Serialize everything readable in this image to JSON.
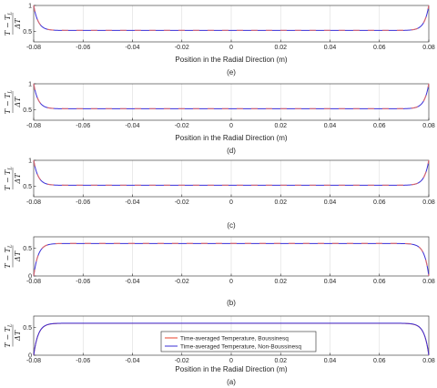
{
  "chart_data": [
    {
      "type": "line",
      "caption": "(e)",
      "xlabel": "Position in the Radial Direction (m)",
      "ylabel": "(T − TL) / ΔT",
      "xlim": [
        -0.08,
        0.08
      ],
      "ylim": [
        0.3,
        1.0
      ],
      "xticks": [
        "-0.08",
        "-0.06",
        "-0.04",
        "-0.02",
        "0",
        "0.02",
        "0.04",
        "0.06",
        "0.08"
      ],
      "yticks": [
        {
          "v": 0.5,
          "label": "0.5"
        },
        {
          "v": 1,
          "label": "1"
        }
      ],
      "grid": "vertical",
      "profile": {
        "edge": 1.0,
        "plateau": 0.52
      },
      "series": [
        {
          "style": "solid",
          "color": "#3a2fd6"
        },
        {
          "style": "dashed",
          "color": "#f07060"
        }
      ]
    },
    {
      "type": "line",
      "caption": "(d)",
      "xlabel": "Position in the Radial Direction (m)",
      "ylabel": "(T − TL) / ΔT",
      "xlim": [
        -0.08,
        0.08
      ],
      "ylim": [
        0.3,
        1.0
      ],
      "xticks": [
        "-0.08",
        "-0.06",
        "-0.04",
        "-0.02",
        "0",
        "0.02",
        "0.04",
        "0.06",
        "0.08"
      ],
      "yticks": [
        {
          "v": 0.5,
          "label": "0.5"
        },
        {
          "v": 1,
          "label": "1"
        }
      ],
      "grid": "vertical",
      "profile": {
        "edge": 1.0,
        "plateau": 0.52
      },
      "series": [
        {
          "style": "solid",
          "color": "#3a2fd6"
        },
        {
          "style": "dashed",
          "color": "#f07060"
        }
      ]
    },
    {
      "type": "line",
      "caption": "(c)",
      "xlabel": "",
      "ylabel": "(T − TL) / ΔT",
      "xlim": [
        -0.08,
        0.08
      ],
      "ylim": [
        0.3,
        1.0
      ],
      "xticks": [
        "-0.08",
        "-0.06",
        "-0.04",
        "-0.02",
        "0",
        "0.02",
        "0.04",
        "0.06",
        "0.08"
      ],
      "yticks": [
        {
          "v": 0.5,
          "label": "0.5"
        },
        {
          "v": 1,
          "label": "1"
        }
      ],
      "grid": "vertical",
      "profile": {
        "edge": 1.0,
        "plateau": 0.52
      },
      "series": [
        {
          "style": "solid",
          "color": "#3a2fd6"
        },
        {
          "style": "dashed",
          "color": "#f07060"
        }
      ]
    },
    {
      "type": "line",
      "caption": "(b)",
      "xlabel": "",
      "ylabel": "(T − TL) / ΔT",
      "xlim": [
        -0.08,
        0.08
      ],
      "ylim": [
        0,
        0.7
      ],
      "xticks": [
        "-0.08",
        "-0.06",
        "-0.04",
        "-0.02",
        "0",
        "0.02",
        "0.04",
        "0.06",
        "0.08"
      ],
      "yticks": [
        {
          "v": 0,
          "label": "0"
        },
        {
          "v": 0.5,
          "label": "0.5"
        }
      ],
      "grid": "vertical",
      "profile": {
        "edge": 0.0,
        "plateau": 0.58
      },
      "series": [
        {
          "style": "solid",
          "color": "#3a2fd6"
        },
        {
          "style": "dashed",
          "color": "#f07060"
        }
      ]
    },
    {
      "type": "line",
      "caption": "(a)",
      "xlabel": "Position in the Radial Direction (m)",
      "ylabel": "(T − TL) / ΔT",
      "xlim": [
        -0.08,
        0.08
      ],
      "ylim": [
        0,
        0.7
      ],
      "xticks": [
        "-0.08",
        "-0.06",
        "-0.04",
        "-0.02",
        "0",
        "0.02",
        "0.04",
        "0.06",
        "0.08"
      ],
      "yticks": [
        {
          "v": 0,
          "label": "0"
        },
        {
          "v": 0.5,
          "label": "0.5"
        }
      ],
      "grid": "vertical",
      "profile": {
        "edge": 0.0,
        "plateau": 0.57
      },
      "legend": "bottom-center",
      "series": [
        {
          "name": "Time-averaged Temperature, Boussinesq",
          "style": "solid",
          "color": "#e8402a"
        },
        {
          "name": "Time-averaged Temperature, Non-Boussinesq",
          "style": "solid",
          "color": "#3a2fd6"
        }
      ]
    }
  ]
}
